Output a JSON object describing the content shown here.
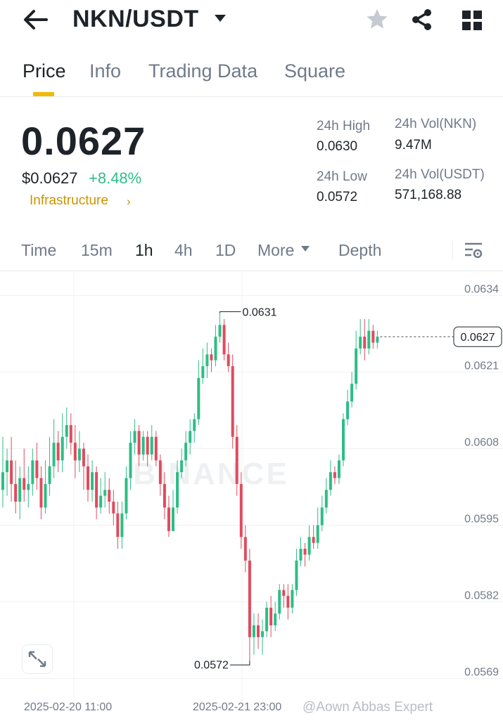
{
  "header": {
    "pair": "NKN/USDT",
    "icons": [
      "back-arrow-icon",
      "caret-down-icon",
      "star-icon",
      "share-icon",
      "grid-icon"
    ]
  },
  "tabs": [
    {
      "label": "Price",
      "active": true
    },
    {
      "label": "Info",
      "active": false
    },
    {
      "label": "Trading Data",
      "active": false
    },
    {
      "label": "Square",
      "active": false
    }
  ],
  "summary": {
    "last_price": "0.0627",
    "usd_price": "$0.0627",
    "change": "+8.48%",
    "sector": "Infrastructure",
    "high_label": "24h High",
    "high_value": "0.0630",
    "low_label": "24h Low",
    "low_value": "0.0572",
    "vol_base_label": "24h Vol(NKN)",
    "vol_base_value": "9.47M",
    "vol_quote_label": "24h Vol(USDT)",
    "vol_quote_value": "571,168.88"
  },
  "intervals": {
    "items": [
      "Time",
      "15m",
      "1h",
      "4h",
      "1D",
      "More",
      "Depth"
    ],
    "active": "1h"
  },
  "colors": {
    "up": "#2ebd85",
    "down": "#e04b5f",
    "accent": "#f0b90b",
    "sector": "#c99400"
  },
  "chart_data": {
    "type": "candlestick",
    "ylim": [
      0.0565,
      0.0638
    ],
    "y_ticks": [
      "0.0634",
      "0.0621",
      "0.0608",
      "0.0595",
      "0.0582",
      "0.0569"
    ],
    "x_labels": [
      "2025-02-20 11:00",
      "2025-02-21 23:00"
    ],
    "last_price_label": "0.0627",
    "high_annotation": "0.0631",
    "low_annotation": "0.0572",
    "watermark": "BINANCE",
    "candles": [
      [
        0.0601,
        0.0604,
        0.061,
        0.0598
      ],
      [
        0.0604,
        0.0606,
        0.0608,
        0.06
      ],
      [
        0.0606,
        0.0602,
        0.061,
        0.0599
      ],
      [
        0.0602,
        0.0599,
        0.0606,
        0.0597
      ],
      [
        0.0599,
        0.0603,
        0.0605,
        0.0596
      ],
      [
        0.0603,
        0.0601,
        0.0608,
        0.0599
      ],
      [
        0.0601,
        0.0602,
        0.0605,
        0.0598
      ],
      [
        0.0602,
        0.0606,
        0.0608,
        0.06
      ],
      [
        0.0606,
        0.0603,
        0.0609,
        0.0601
      ],
      [
        0.0603,
        0.0598,
        0.0605,
        0.0596
      ],
      [
        0.0598,
        0.0602,
        0.0606,
        0.0597
      ],
      [
        0.0602,
        0.0605,
        0.061,
        0.06
      ],
      [
        0.0605,
        0.0609,
        0.0613,
        0.0603
      ],
      [
        0.0609,
        0.0606,
        0.0611,
        0.0604
      ],
      [
        0.0606,
        0.061,
        0.0614,
        0.0604
      ],
      [
        0.061,
        0.0612,
        0.0615,
        0.0608
      ],
      [
        0.0612,
        0.0609,
        0.0614,
        0.0607
      ],
      [
        0.0609,
        0.0606,
        0.0612,
        0.0603
      ],
      [
        0.0606,
        0.0608,
        0.0611,
        0.0604
      ],
      [
        0.0608,
        0.0605,
        0.0609,
        0.0601
      ],
      [
        0.0605,
        0.0601,
        0.0607,
        0.0599
      ],
      [
        0.0601,
        0.0604,
        0.0606,
        0.0599
      ],
      [
        0.0604,
        0.0598,
        0.0605,
        0.0596
      ],
      [
        0.0598,
        0.06,
        0.0603,
        0.0597
      ],
      [
        0.06,
        0.0601,
        0.0604,
        0.0598
      ],
      [
        0.0601,
        0.0599,
        0.0603,
        0.0597
      ],
      [
        0.0599,
        0.0597,
        0.0601,
        0.0595
      ],
      [
        0.0597,
        0.0593,
        0.0599,
        0.0591
      ],
      [
        0.0593,
        0.0597,
        0.0599,
        0.0591
      ],
      [
        0.0597,
        0.0603,
        0.0605,
        0.0596
      ],
      [
        0.0603,
        0.0609,
        0.0611,
        0.0601
      ],
      [
        0.0609,
        0.0611,
        0.0613,
        0.0607
      ],
      [
        0.0611,
        0.0607,
        0.0612,
        0.0605
      ],
      [
        0.0607,
        0.061,
        0.0611,
        0.0606
      ],
      [
        0.061,
        0.0607,
        0.0611,
        0.0605
      ],
      [
        0.0607,
        0.061,
        0.0612,
        0.0606
      ],
      [
        0.061,
        0.0606,
        0.0611,
        0.0605
      ],
      [
        0.0606,
        0.0602,
        0.0607,
        0.06
      ],
      [
        0.0602,
        0.0598,
        0.0604,
        0.0596
      ],
      [
        0.0598,
        0.0594,
        0.06,
        0.0593
      ],
      [
        0.0594,
        0.0598,
        0.0601,
        0.0594
      ],
      [
        0.0598,
        0.0604,
        0.0606,
        0.0597
      ],
      [
        0.0604,
        0.0606,
        0.0608,
        0.0603
      ],
      [
        0.0606,
        0.0609,
        0.0611,
        0.0605
      ],
      [
        0.0609,
        0.0611,
        0.0613,
        0.0607
      ],
      [
        0.0611,
        0.0613,
        0.0614,
        0.0609
      ],
      [
        0.0613,
        0.062,
        0.0623,
        0.0612
      ],
      [
        0.062,
        0.0622,
        0.0625,
        0.0619
      ],
      [
        0.0622,
        0.0624,
        0.0626,
        0.062
      ],
      [
        0.0624,
        0.0623,
        0.0625,
        0.0621
      ],
      [
        0.0623,
        0.0627,
        0.0629,
        0.0622
      ],
      [
        0.0627,
        0.0629,
        0.0631,
        0.0626
      ],
      [
        0.0629,
        0.0624,
        0.063,
        0.0623
      ],
      [
        0.0624,
        0.0622,
        0.0626,
        0.0621
      ],
      [
        0.0622,
        0.061,
        0.0624,
        0.0608
      ],
      [
        0.061,
        0.0602,
        0.0612,
        0.06
      ],
      [
        0.0602,
        0.0593,
        0.0604,
        0.0591
      ],
      [
        0.0593,
        0.0589,
        0.0595,
        0.0587
      ],
      [
        0.0589,
        0.0576,
        0.0591,
        0.0572
      ],
      [
        0.0576,
        0.0578,
        0.058,
        0.0573
      ],
      [
        0.0578,
        0.0576,
        0.058,
        0.0574
      ],
      [
        0.0576,
        0.0577,
        0.0579,
        0.0573
      ],
      [
        0.0577,
        0.0581,
        0.0582,
        0.0576
      ],
      [
        0.0581,
        0.0578,
        0.0583,
        0.0576
      ],
      [
        0.0578,
        0.058,
        0.0582,
        0.0577
      ],
      [
        0.058,
        0.0584,
        0.0585,
        0.0579
      ],
      [
        0.0584,
        0.0583,
        0.0585,
        0.0581
      ],
      [
        0.0583,
        0.0581,
        0.0585,
        0.0579
      ],
      [
        0.0581,
        0.0584,
        0.0585,
        0.058
      ],
      [
        0.0584,
        0.0589,
        0.0591,
        0.0583
      ],
      [
        0.0589,
        0.0591,
        0.0593,
        0.0588
      ],
      [
        0.0591,
        0.059,
        0.0592,
        0.0588
      ],
      [
        0.059,
        0.0593,
        0.0595,
        0.0589
      ],
      [
        0.0593,
        0.0592,
        0.0595,
        0.0591
      ],
      [
        0.0592,
        0.0595,
        0.0598,
        0.0591
      ],
      [
        0.0595,
        0.0598,
        0.06,
        0.0594
      ],
      [
        0.0598,
        0.0601,
        0.0603,
        0.0597
      ],
      [
        0.0601,
        0.0604,
        0.0606,
        0.06
      ],
      [
        0.0604,
        0.0603,
        0.0605,
        0.0602
      ],
      [
        0.0603,
        0.0606,
        0.0607,
        0.0602
      ],
      [
        0.0606,
        0.0613,
        0.0614,
        0.0605
      ],
      [
        0.0613,
        0.0616,
        0.0618,
        0.0612
      ],
      [
        0.0616,
        0.0619,
        0.0621,
        0.0615
      ],
      [
        0.0619,
        0.0625,
        0.0628,
        0.0618
      ],
      [
        0.0625,
        0.0627,
        0.063,
        0.0624
      ],
      [
        0.0627,
        0.0625,
        0.063,
        0.0623
      ],
      [
        0.0625,
        0.0628,
        0.063,
        0.0624
      ],
      [
        0.0628,
        0.0626,
        0.0629,
        0.0625
      ],
      [
        0.0626,
        0.0627,
        0.0628,
        0.0625
      ]
    ]
  },
  "footer": {
    "watermark": "@Aown Abbas Expert"
  }
}
